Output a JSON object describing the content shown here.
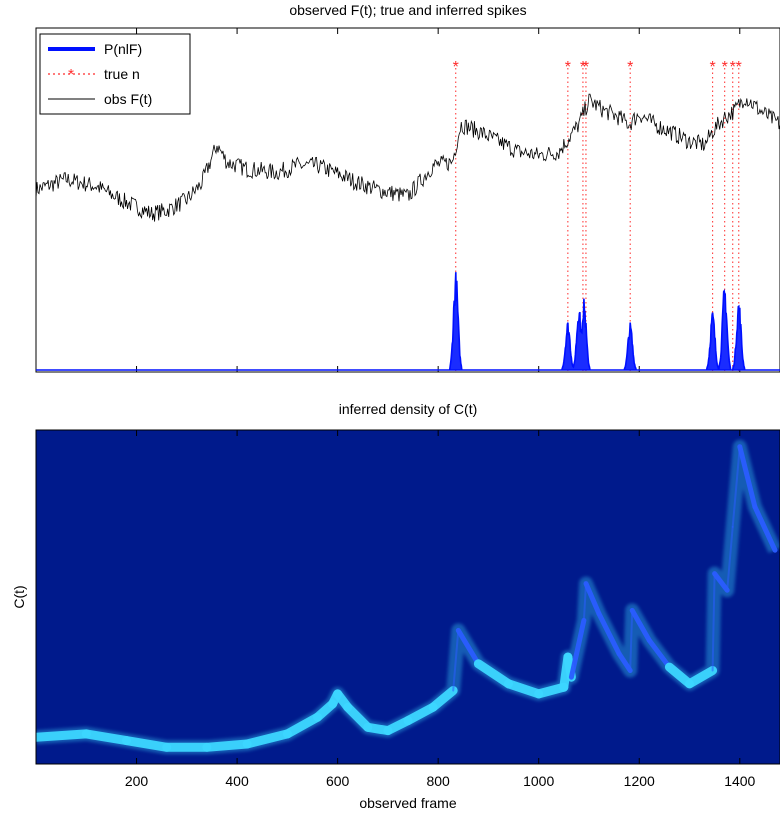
{
  "chart_data": [
    {
      "type": "line",
      "title": "observed F(t); true and inferred spikes",
      "xlabel": "",
      "ylabel": "",
      "xlim": [
        0,
        1480
      ],
      "legend": {
        "placement": "top-left",
        "entries": [
          "P(nlF)",
          "true n",
          "obs F(t)"
        ]
      },
      "colors": {
        "posterior": "#0010ff",
        "true_spikes": "#ff2a2a",
        "fluorescence": "#000000"
      },
      "true_spike_frames": [
        835,
        1058,
        1088,
        1094,
        1182,
        1346,
        1370,
        1386,
        1398
      ],
      "series": [
        {
          "name": "obs F(t)",
          "style": "black line",
          "points": [
            [
              0,
              0.53
            ],
            [
              60,
              0.56
            ],
            [
              120,
              0.54
            ],
            [
              170,
              0.5
            ],
            [
              230,
              0.46
            ],
            [
              260,
              0.47
            ],
            [
              300,
              0.5
            ],
            [
              330,
              0.55
            ],
            [
              360,
              0.66
            ],
            [
              380,
              0.61
            ],
            [
              420,
              0.59
            ],
            [
              480,
              0.58
            ],
            [
              520,
              0.6
            ],
            [
              560,
              0.6
            ],
            [
              610,
              0.57
            ],
            [
              640,
              0.55
            ],
            [
              680,
              0.53
            ],
            [
              740,
              0.51
            ],
            [
              790,
              0.6
            ],
            [
              828,
              0.61
            ],
            [
              845,
              0.72
            ],
            [
              880,
              0.7
            ],
            [
              920,
              0.67
            ],
            [
              960,
              0.64
            ],
            [
              1000,
              0.63
            ],
            [
              1040,
              0.64
            ],
            [
              1060,
              0.68
            ],
            [
              1080,
              0.72
            ],
            [
              1100,
              0.79
            ],
            [
              1130,
              0.76
            ],
            [
              1160,
              0.74
            ],
            [
              1180,
              0.72
            ],
            [
              1200,
              0.75
            ],
            [
              1230,
              0.72
            ],
            [
              1260,
              0.7
            ],
            [
              1300,
              0.67
            ],
            [
              1330,
              0.66
            ],
            [
              1346,
              0.7
            ],
            [
              1370,
              0.74
            ],
            [
              1390,
              0.76
            ],
            [
              1410,
              0.8
            ],
            [
              1440,
              0.76
            ],
            [
              1480,
              0.72
            ]
          ]
        },
        {
          "name": "P(nlF)",
          "style": "blue posterior spikes",
          "bumps": [
            [
              835,
              1.0
            ],
            [
              1058,
              0.5
            ],
            [
              1080,
              0.65
            ],
            [
              1090,
              0.72
            ],
            [
              1182,
              0.48
            ],
            [
              1346,
              0.6
            ],
            [
              1370,
              0.88
            ],
            [
              1398,
              0.72
            ]
          ]
        }
      ]
    },
    {
      "type": "heatmap",
      "title": "inferred density of C(t)",
      "xlabel": "observed frame",
      "ylabel": "C(t)",
      "xlim": [
        0,
        1480
      ],
      "xticks": [
        "200",
        "400",
        "600",
        "800",
        "1000",
        "1200",
        "1400"
      ],
      "xtick_values": [
        200,
        400,
        600,
        800,
        1000,
        1200,
        1400
      ],
      "colors": {
        "background": "#001a8c",
        "ridge_low": "#3cd6ff",
        "ridge_high": "#2a5cff"
      },
      "ridge": [
        [
          0,
          0.08
        ],
        [
          100,
          0.09
        ],
        [
          180,
          0.07
        ],
        [
          260,
          0.05
        ],
        [
          340,
          0.05
        ],
        [
          420,
          0.06
        ],
        [
          500,
          0.09
        ],
        [
          560,
          0.14
        ],
        [
          590,
          0.18
        ],
        [
          600,
          0.21
        ],
        [
          620,
          0.17
        ],
        [
          660,
          0.11
        ],
        [
          700,
          0.1
        ],
        [
          740,
          0.13
        ],
        [
          790,
          0.17
        ],
        [
          830,
          0.22
        ],
        [
          840,
          0.4
        ],
        [
          880,
          0.3
        ],
        [
          940,
          0.24
        ],
        [
          1000,
          0.21
        ],
        [
          1050,
          0.23
        ],
        [
          1058,
          0.32
        ],
        [
          1065,
          0.26
        ],
        [
          1090,
          0.43
        ],
        [
          1094,
          0.54
        ],
        [
          1120,
          0.45
        ],
        [
          1160,
          0.33
        ],
        [
          1182,
          0.28
        ],
        [
          1186,
          0.46
        ],
        [
          1220,
          0.37
        ],
        [
          1260,
          0.29
        ],
        [
          1300,
          0.24
        ],
        [
          1346,
          0.28
        ],
        [
          1350,
          0.57
        ],
        [
          1375,
          0.52
        ],
        [
          1386,
          0.71
        ],
        [
          1400,
          0.95
        ],
        [
          1430,
          0.77
        ],
        [
          1470,
          0.64
        ]
      ]
    }
  ]
}
